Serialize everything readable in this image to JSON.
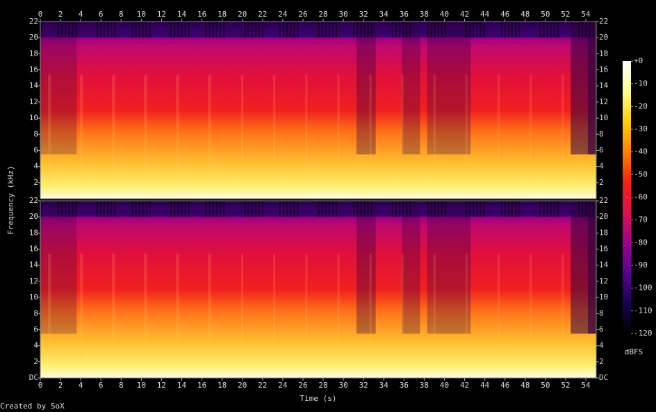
{
  "chart_data": {
    "type": "spectrogram",
    "x_label": "Time (s)",
    "y_label": "Frequency (kHz)",
    "footer": "Created by SoX",
    "xlim": [
      0,
      55.03
    ],
    "xticks": [
      0,
      2,
      4,
      6,
      8,
      10,
      12,
      14,
      16,
      18,
      20,
      22,
      24,
      26,
      28,
      30,
      32,
      34,
      36,
      38,
      40,
      42,
      44,
      46,
      48,
      50,
      52,
      54
    ],
    "channels": [
      {
        "ylim": [
          0,
          22
        ],
        "yticks": [
          2,
          4,
          6,
          8,
          10,
          12,
          14,
          16,
          18,
          20,
          22
        ]
      },
      {
        "ylim": [
          0,
          22
        ],
        "yticks": [
          {
            "value": 0,
            "label": "DC"
          },
          2,
          4,
          6,
          8,
          10,
          12,
          14,
          16,
          18,
          20,
          22
        ]
      }
    ],
    "colorbar": {
      "label": "dBFS",
      "lim": [
        -120,
        0
      ],
      "ticks": [
        {
          "value": 0,
          "label": "+0"
        },
        -10,
        -20,
        -30,
        -40,
        -50,
        -60,
        -70,
        -80,
        -90,
        -100,
        -110,
        -120
      ],
      "colors": [
        "#000000",
        "#1a0050",
        "#5a0090",
        "#a00090",
        "#e01050",
        "#f82010",
        "#ff8000",
        "#ffd000",
        "#ffff90",
        "#ffffff"
      ]
    }
  }
}
